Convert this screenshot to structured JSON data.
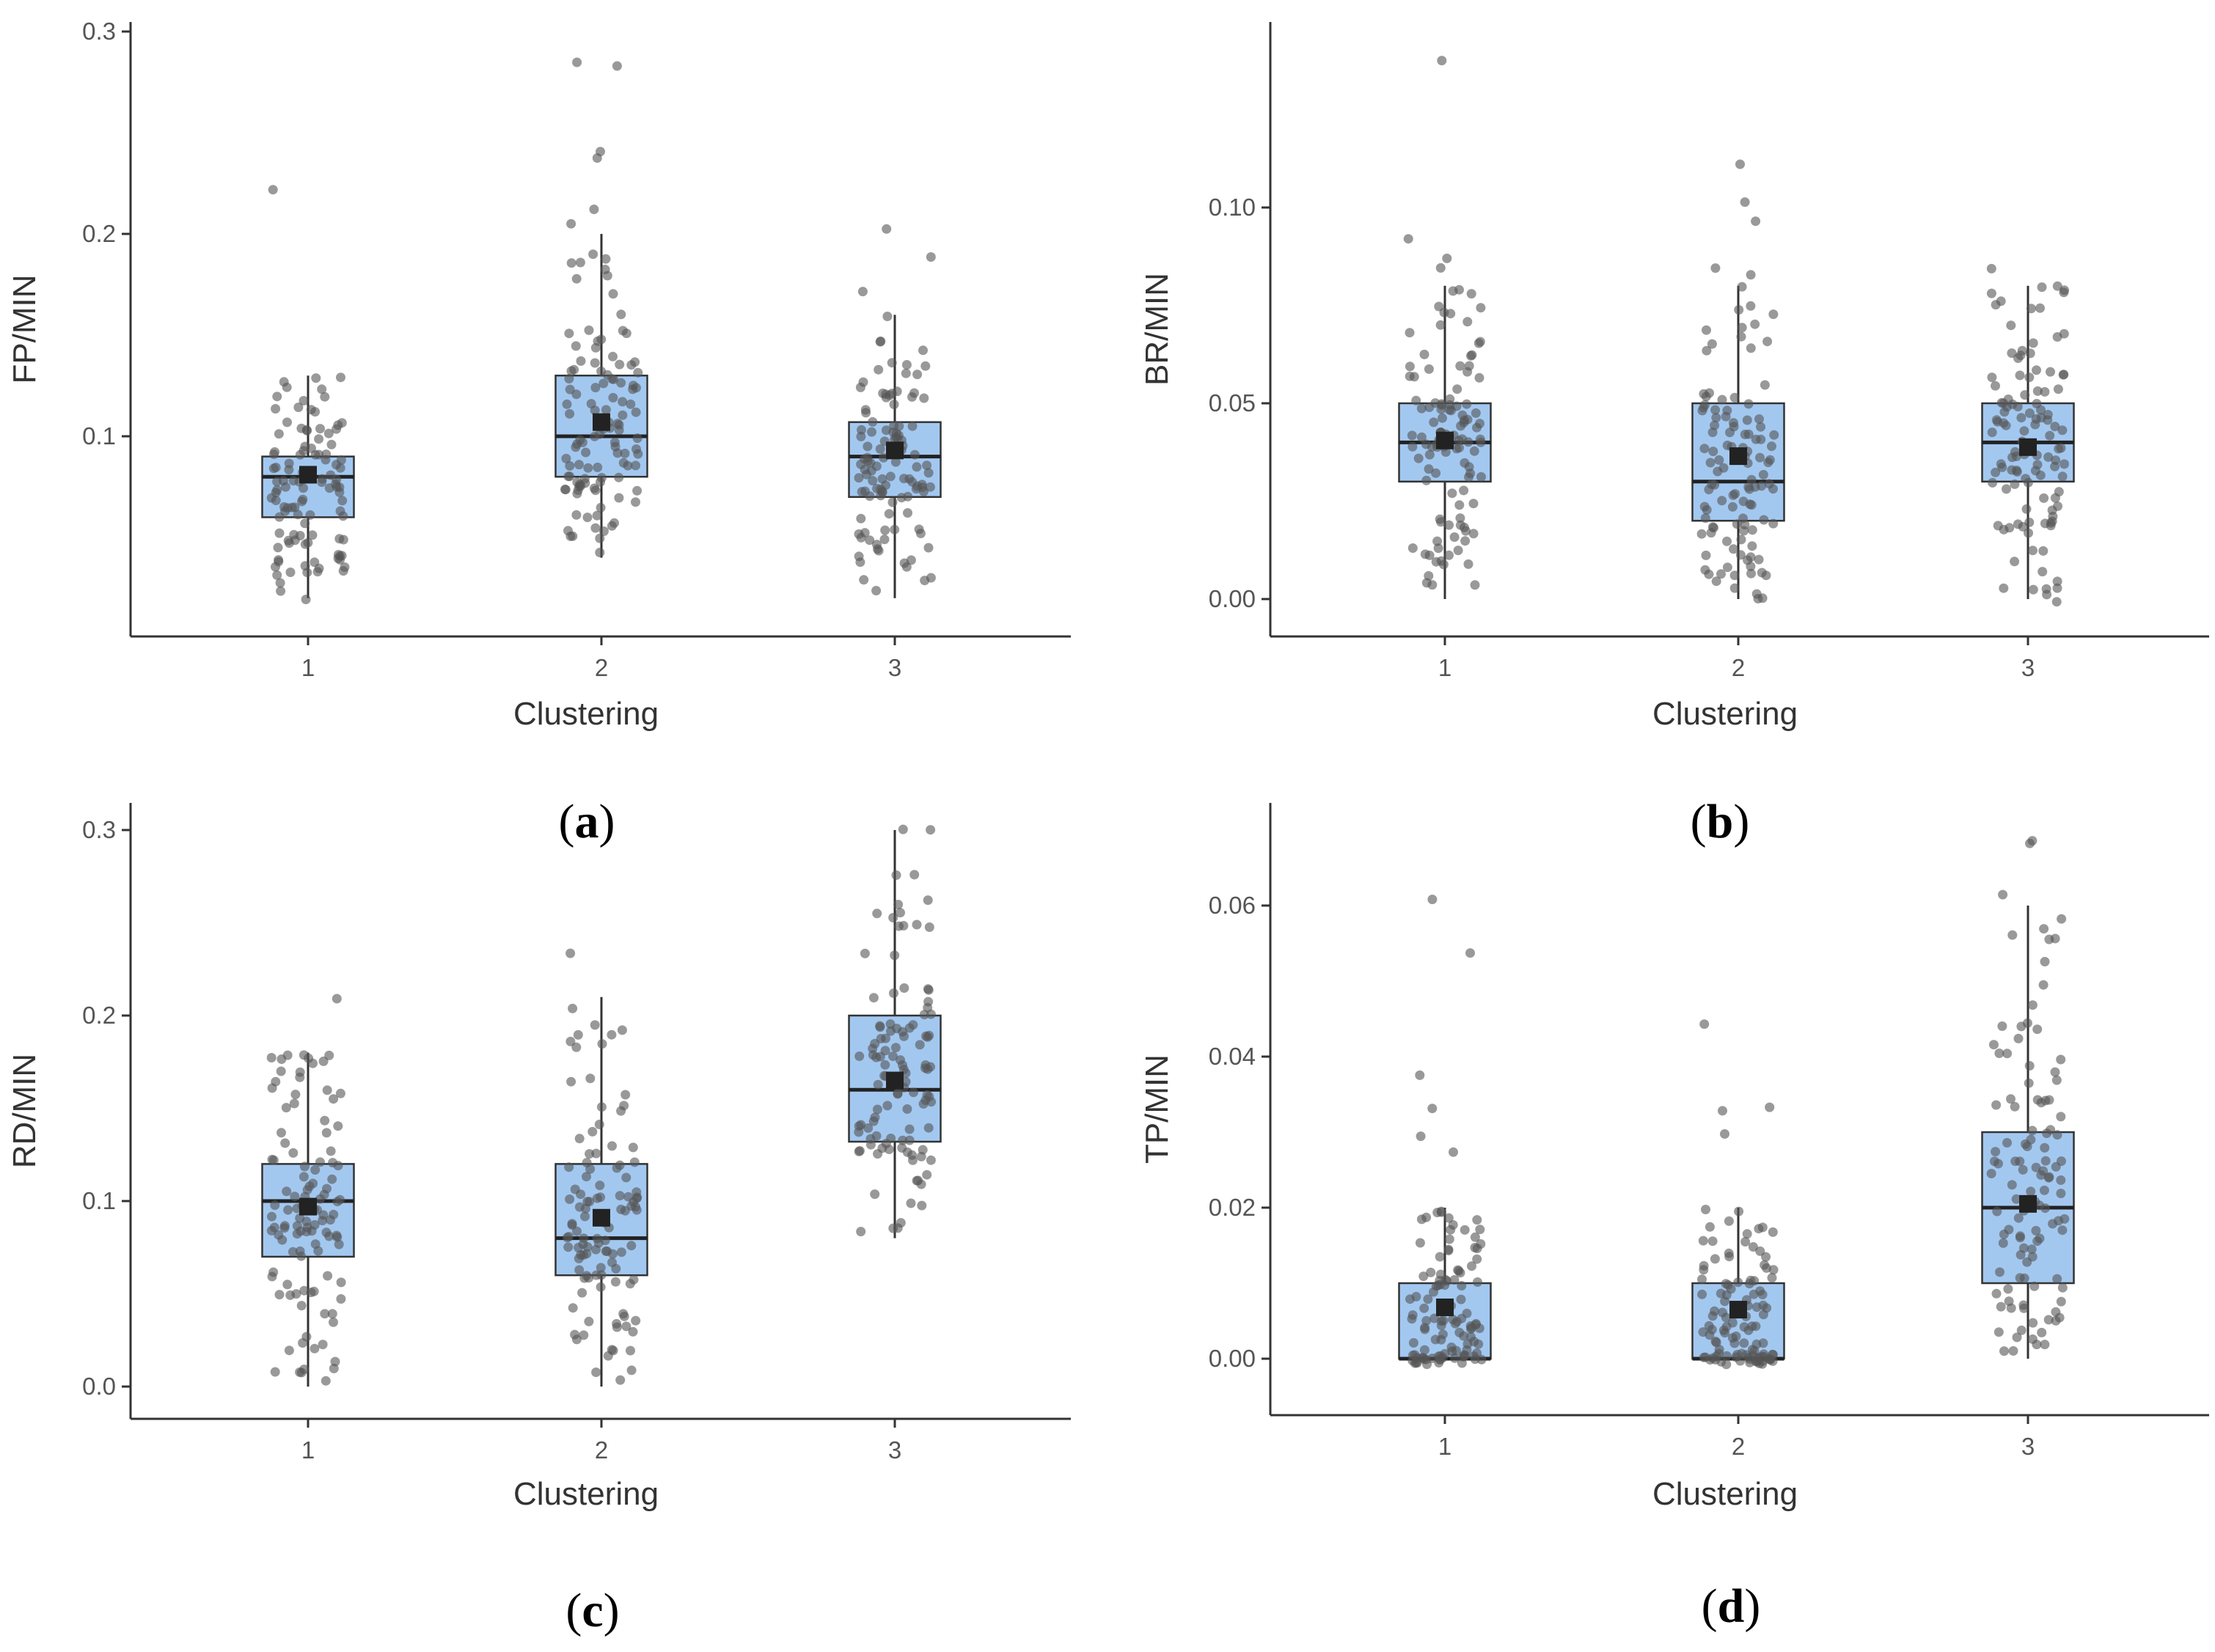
{
  "chart_data": [
    {
      "type": "box",
      "panel": "a",
      "xlabel": "Clustering",
      "ylabel": "FP/MIN",
      "categories": [
        "1",
        "2",
        "3"
      ],
      "ylim": [
        0.0,
        0.3
      ],
      "yticks": [
        0.1,
        0.2,
        0.3
      ],
      "ytick_labels": [
        "0.1",
        "0.2",
        "0.3"
      ],
      "box_color": "#a3c8f0",
      "boxes": [
        {
          "category": "1",
          "whisker_low": 0.02,
          "q1": 0.06,
          "median": 0.08,
          "q3": 0.09,
          "whisker_high": 0.13,
          "mean": 0.081
        },
        {
          "category": "2",
          "whisker_low": 0.04,
          "q1": 0.08,
          "median": 0.1,
          "q3": 0.13,
          "whisker_high": 0.2,
          "mean": 0.107
        },
        {
          "category": "3",
          "whisker_low": 0.02,
          "q1": 0.07,
          "median": 0.09,
          "q3": 0.107,
          "whisker_high": 0.16,
          "mean": 0.093
        }
      ],
      "outliers": [
        {
          "category": "1",
          "values": [
            0.22
          ]
        },
        {
          "category": "2",
          "values": [
            0.287,
            0.282,
            0.24,
            0.237,
            0.212,
            0.207
          ]
        },
        {
          "category": "3",
          "values": [
            0.202,
            0.19,
            0.17
          ]
        }
      ]
    },
    {
      "type": "box",
      "panel": "b",
      "xlabel": "Clustering",
      "ylabel": "BR/MIN",
      "categories": [
        "1",
        "2",
        "3"
      ],
      "ylim": [
        0.0,
        0.14
      ],
      "yticks": [
        0.0,
        0.05,
        0.1
      ],
      "ytick_labels": [
        "0.00",
        "0.05",
        "0.10"
      ],
      "box_color": "#a3c8f0",
      "boxes": [
        {
          "category": "1",
          "whisker_low": 0.0,
          "q1": 0.03,
          "median": 0.04,
          "q3": 0.05,
          "whisker_high": 0.08,
          "mean": 0.0405
        },
        {
          "category": "2",
          "whisker_low": 0.0,
          "q1": 0.02,
          "median": 0.03,
          "q3": 0.05,
          "whisker_high": 0.08,
          "mean": 0.0365
        },
        {
          "category": "3",
          "whisker_low": 0.0,
          "q1": 0.03,
          "median": 0.04,
          "q3": 0.05,
          "whisker_high": 0.08,
          "mean": 0.0388
        }
      ],
      "outliers": [
        {
          "category": "1",
          "values": [
            0.139,
            0.092,
            0.087,
            0.086
          ]
        },
        {
          "category": "2",
          "values": [
            0.11,
            0.1,
            0.097,
            0.084,
            0.082
          ]
        },
        {
          "category": "3",
          "values": [
            0.083,
            0.081
          ]
        }
      ]
    },
    {
      "type": "box",
      "panel": "c",
      "xlabel": "Clustering",
      "ylabel": "RD/MIN",
      "categories": [
        "1",
        "2",
        "3"
      ],
      "ylim": [
        0.0,
        0.3
      ],
      "yticks": [
        0.0,
        0.1,
        0.2,
        0.3
      ],
      "ytick_labels": [
        "0.0",
        "0.1",
        "0.2",
        "0.3"
      ],
      "box_color": "#a3c8f0",
      "boxes": [
        {
          "category": "1",
          "whisker_low": 0.0,
          "q1": 0.07,
          "median": 0.1,
          "q3": 0.12,
          "whisker_high": 0.18,
          "mean": 0.097
        },
        {
          "category": "2",
          "whisker_low": 0.0,
          "q1": 0.06,
          "median": 0.08,
          "q3": 0.12,
          "whisker_high": 0.21,
          "mean": 0.091
        },
        {
          "category": "3",
          "whisker_low": 0.08,
          "q1": 0.132,
          "median": 0.16,
          "q3": 0.2,
          "whisker_high": 0.3,
          "mean": 0.165
        }
      ],
      "outliers": [
        {
          "category": "1",
          "values": [
            0.211
          ]
        },
        {
          "category": "2",
          "values": [
            0.233
          ]
        },
        {
          "category": "3",
          "values": [
            0.3
          ]
        }
      ]
    },
    {
      "type": "box",
      "panel": "d",
      "xlabel": "Clustering",
      "ylabel": "TP/MIN",
      "categories": [
        "1",
        "2",
        "3"
      ],
      "ylim": [
        0.0,
        0.07
      ],
      "yticks": [
        0.0,
        0.02,
        0.04,
        0.06
      ],
      "ytick_labels": [
        "0.00",
        "0.02",
        "0.04",
        "0.06"
      ],
      "box_color": "#a3c8f0",
      "boxes": [
        {
          "category": "1",
          "whisker_low": 0.0,
          "q1": 0.0,
          "median": 0.0,
          "q3": 0.01,
          "whisker_high": 0.02,
          "mean": 0.0068
        },
        {
          "category": "2",
          "whisker_low": 0.0,
          "q1": 0.0,
          "median": 0.0,
          "q3": 0.01,
          "whisker_high": 0.02,
          "mean": 0.0065
        },
        {
          "category": "3",
          "whisker_low": 0.0,
          "q1": 0.01,
          "median": 0.02,
          "q3": 0.03,
          "whisker_high": 0.06,
          "mean": 0.0205
        }
      ],
      "outliers": [
        {
          "category": "1",
          "values": [
            0.061,
            0.053,
            0.038,
            0.033,
            0.03,
            0.028
          ]
        },
        {
          "category": "2",
          "values": [
            0.044,
            0.034,
            0.033,
            0.029
          ]
        },
        {
          "category": "3",
          "values": [
            0.069,
            0.068,
            0.061,
            0.059
          ]
        }
      ]
    }
  ],
  "panel_labels": [
    {
      "open": "(",
      "letter": "a",
      "close": ")"
    },
    {
      "open": "(",
      "letter": "b",
      "close": ")"
    },
    {
      "open": "(",
      "letter": "c",
      "close": ")"
    },
    {
      "open": "(",
      "letter": "d",
      "close": ")"
    }
  ],
  "colors": {
    "box_fill": "#a3c8f0",
    "box_stroke": "#333333",
    "point": "#555555",
    "axis": "#333333"
  }
}
